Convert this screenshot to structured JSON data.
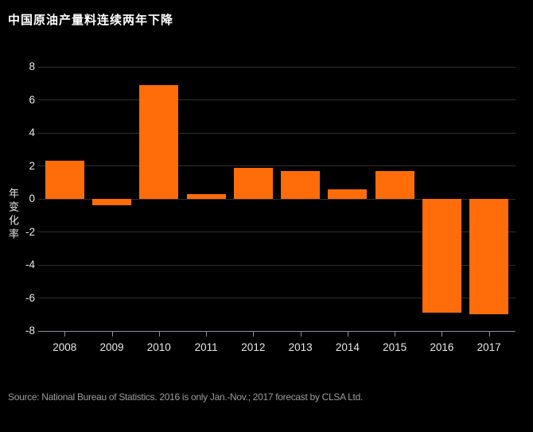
{
  "title": "中国原油产量料连续两年下降",
  "source": "Source: National Bureau of Statistics. 2016 is only Jan.-Nov.; 2017 forecast by CLSA Ltd.",
  "colors": {
    "background": "#000000",
    "bar": "#ff6c09",
    "grid": "#303030",
    "axis": "#8b9196",
    "tick_text": "#e8e8e8",
    "title_text": "#ffffff",
    "source_text": "#9b9b9b"
  },
  "chart_data": {
    "type": "bar",
    "title": "中国原油产量料连续两年下降",
    "ylabel": "年变化率",
    "xlabel": "",
    "categories": [
      "2008",
      "2009",
      "2010",
      "2011",
      "2012",
      "2013",
      "2014",
      "2015",
      "2016",
      "2017"
    ],
    "values": [
      2.3,
      -0.4,
      6.9,
      0.3,
      1.9,
      1.7,
      0.6,
      1.7,
      -6.9,
      -7.0
    ],
    "ylim": [
      -8,
      8
    ],
    "yticks": [
      8,
      6,
      4,
      2,
      0,
      -2,
      -4,
      -6,
      -8
    ],
    "grid": true,
    "legend_position": "none"
  }
}
